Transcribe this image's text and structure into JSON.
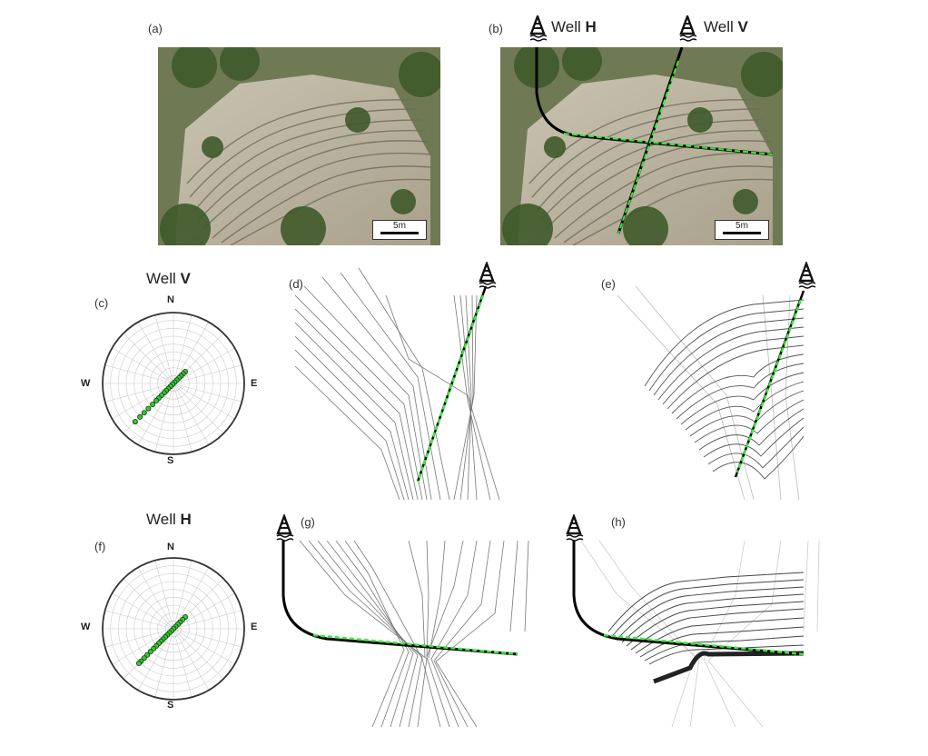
{
  "panels": {
    "a": {
      "label": "(a)",
      "scale": "5m"
    },
    "b": {
      "label": "(b)",
      "scale": "5m",
      "well_h_label": "Well",
      "well_h_letter": "H",
      "well_v_label": "Well",
      "well_v_letter": "V"
    },
    "c": {
      "label": "(c)",
      "title": "Well",
      "title_letter": "V",
      "n": "N",
      "e": "E",
      "s": "S",
      "w": "W"
    },
    "d": {
      "label": "(d)"
    },
    "e": {
      "label": "(e)"
    },
    "f": {
      "label": "(f)",
      "title": "Well",
      "title_letter": "H",
      "n": "N",
      "e": "E",
      "s": "S",
      "w": "W"
    },
    "g": {
      "label": "(g)"
    },
    "h": {
      "label": "(h)"
    }
  },
  "colors": {
    "dip_marker": "#33ee33",
    "well_path": "#000000",
    "fault_line": "#888888"
  },
  "icons": {
    "rig": "drilling-rig-icon"
  }
}
